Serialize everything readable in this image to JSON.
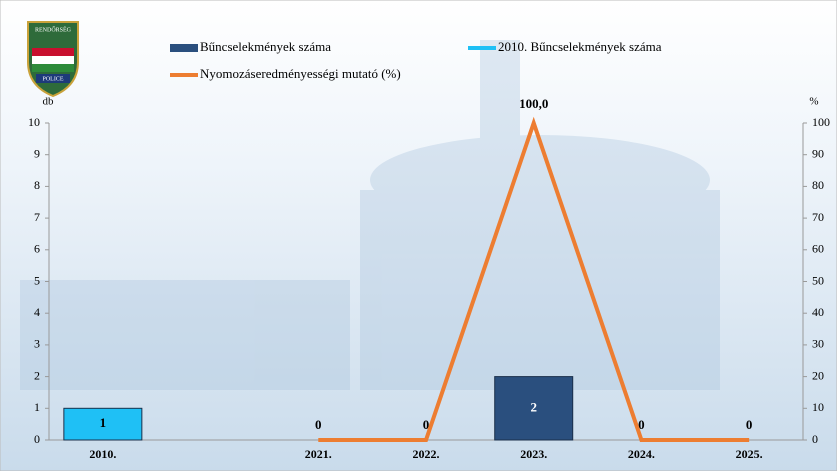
{
  "logo": {
    "top": "RENDŐRSÉG",
    "bottom": "POLICE"
  },
  "chart_data": {
    "type": "bar-line",
    "y_label": "db",
    "y2_label": "%",
    "categories": [
      "2010.",
      null,
      "2021.",
      "2022.",
      "2023.",
      "2024.",
      "2025."
    ],
    "series": [
      {
        "name": "Bűncselekmények száma",
        "type": "bar",
        "color": "#2a4f7e",
        "values": [
          null,
          null,
          0,
          0,
          2,
          0,
          0
        ]
      },
      {
        "name": "2010. Bűncselekmények száma",
        "type": "bar",
        "color": "#1fc0f5",
        "values": [
          1,
          null,
          null,
          null,
          null,
          null,
          null
        ]
      },
      {
        "name": "Nyomozáseredményességi mutató (%)",
        "type": "line",
        "axis": "y2",
        "color": "#ed7d31",
        "values": [
          null,
          null,
          0,
          0,
          100,
          0,
          0
        ],
        "value_labels": [
          null,
          null,
          null,
          null,
          "100,0",
          null,
          null
        ]
      }
    ],
    "ylim": [
      0,
      10
    ],
    "yticks": [
      0,
      1,
      2,
      3,
      4,
      5,
      6,
      7,
      8,
      9,
      10
    ],
    "y2lim": [
      0,
      100
    ],
    "y2ticks": [
      0,
      10,
      20,
      30,
      40,
      50,
      60,
      70,
      80,
      90,
      100
    ],
    "grid": false
  }
}
